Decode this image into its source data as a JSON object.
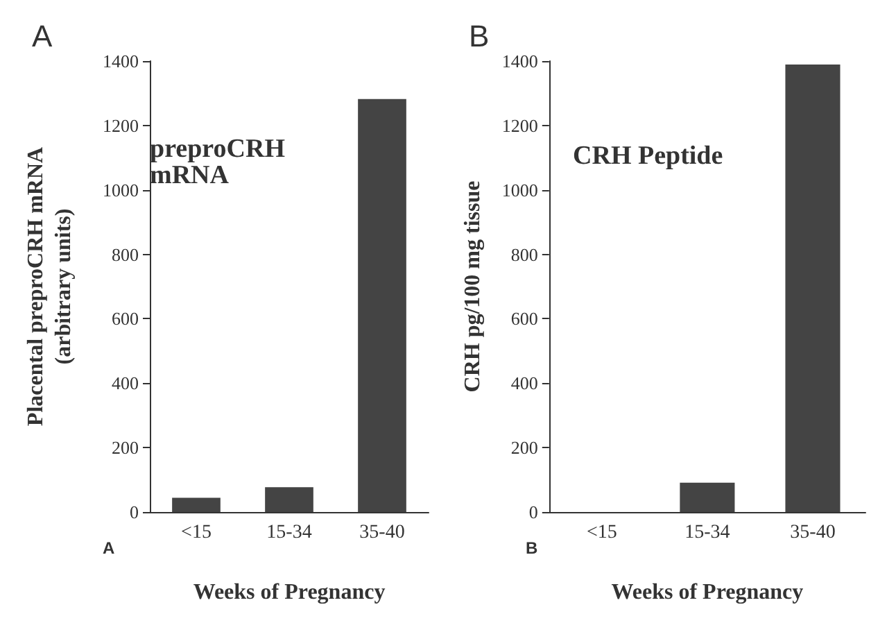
{
  "chart_data": [
    {
      "type": "bar",
      "title": "A",
      "categories": [
        "<15",
        "15-34",
        "35-40"
      ],
      "values": [
        44,
        77,
        1282
      ],
      "color": "#444444",
      "ylabel": "Placental preproCRH mRNA\n(arbitrary units)",
      "xlabel": "Weeks of Pregnancy",
      "ylim": [
        0,
        1400
      ],
      "yticks": [
        0,
        200,
        400,
        600,
        800,
        1000,
        1200,
        1400
      ],
      "annotations": [
        "preproCRH\nmRNA",
        "A"
      ]
    },
    {
      "type": "bar",
      "title": "B",
      "categories": [
        "<15",
        "15-34",
        "35-40"
      ],
      "values": [
        0,
        91,
        1389
      ],
      "color": "#444444",
      "ylabel": "CRH pg/100 mg tissue",
      "xlabel": "Weeks of Pregnancy",
      "ylim": [
        0,
        1400
      ],
      "yticks": [
        0,
        200,
        400,
        600,
        800,
        1000,
        1200,
        1400
      ],
      "annotations": [
        "CRH Peptide",
        "B"
      ]
    }
  ]
}
